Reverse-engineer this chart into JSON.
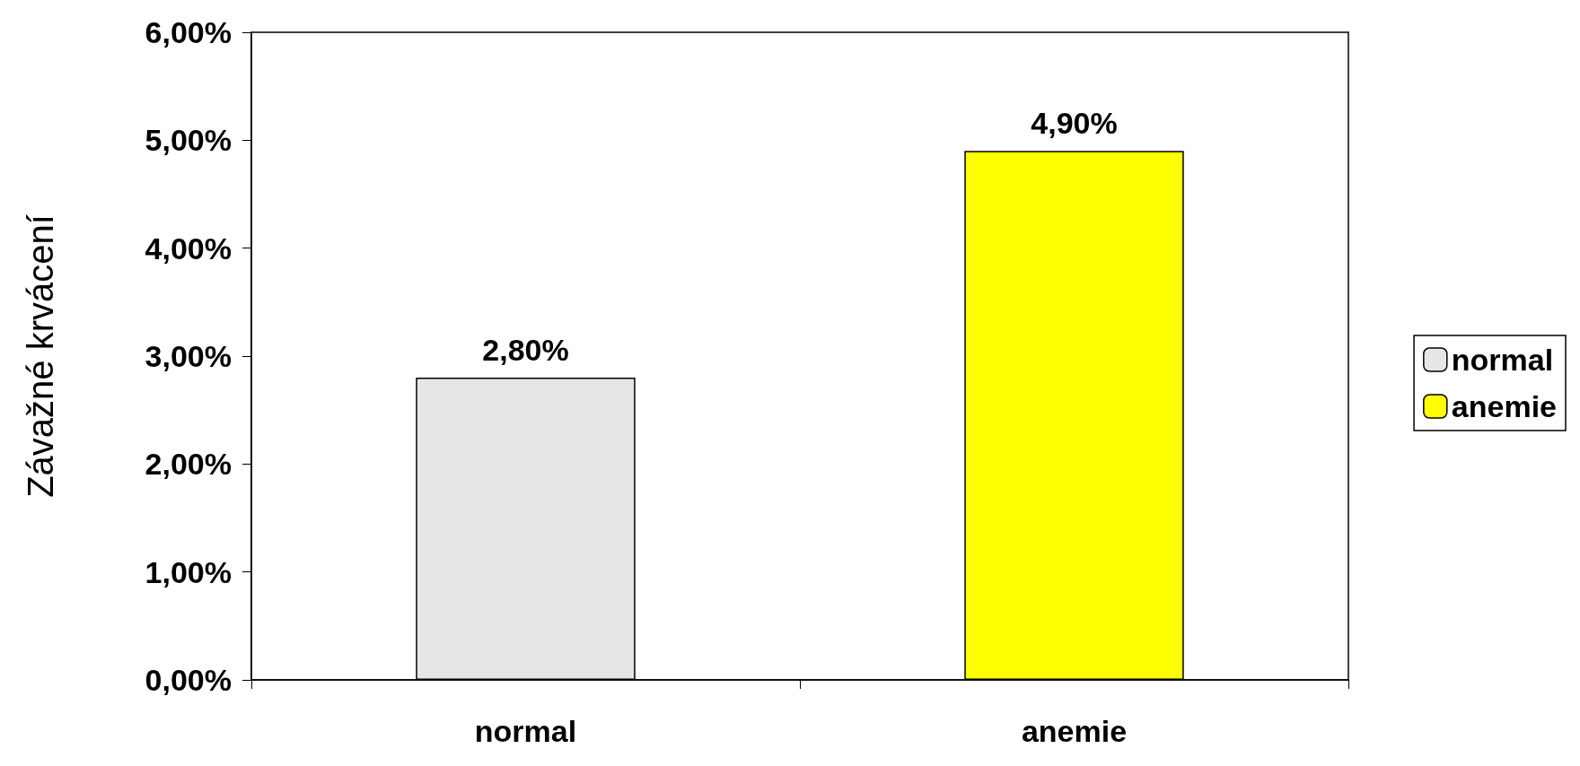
{
  "chart_data": {
    "type": "bar",
    "ylabel": "Závažné krvácení",
    "categories": [
      "normal",
      "anemie"
    ],
    "series": [
      {
        "name": "normal",
        "color": "#e6e6e6",
        "values": [
          2.8,
          null
        ],
        "value_labels": [
          "2,80%",
          null
        ]
      },
      {
        "name": "anemie",
        "color": "#ffff00",
        "values": [
          null,
          4.9
        ],
        "value_labels": [
          null,
          "4,90%"
        ]
      }
    ],
    "ylim": [
      0,
      6
    ],
    "yticks": [
      {
        "value": 0,
        "label": "0,00%"
      },
      {
        "value": 1,
        "label": "1,00%"
      },
      {
        "value": 2,
        "label": "2,00%"
      },
      {
        "value": 3,
        "label": "3,00%"
      },
      {
        "value": 4,
        "label": "4,00%"
      },
      {
        "value": 5,
        "label": "5,00%"
      },
      {
        "value": 6,
        "label": "6,00%"
      }
    ],
    "grid": false,
    "legend": "right"
  }
}
